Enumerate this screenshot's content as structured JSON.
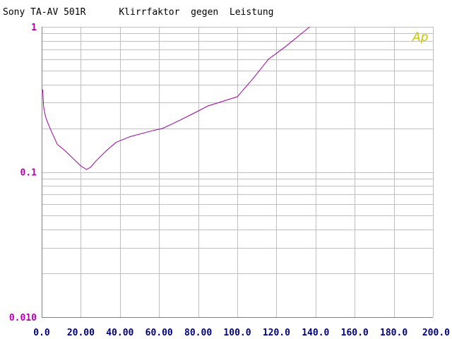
{
  "chart_data": {
    "type": "line",
    "title": "Sony TA-AV 501R      Klirrfaktor  gegen  Leistung",
    "xlabel": "",
    "ylabel": "",
    "xlim": [
      0,
      200
    ],
    "ylim": [
      0.01,
      1
    ],
    "y_scale": "log",
    "grid": true,
    "x_ticks": [
      "0.0",
      "20.00",
      "40.00",
      "60.00",
      "80.00",
      "100.0",
      "120.0",
      "140.0",
      "160.0",
      "180.0",
      "200.0"
    ],
    "y_ticks": [
      {
        "value": 1,
        "label": "1"
      },
      {
        "value": 0.1,
        "label": "0.1"
      },
      {
        "value": 0.01,
        "label": "0.010"
      }
    ],
    "series": [
      {
        "color": "#a000a0",
        "x": [
          0.5,
          1,
          2,
          3,
          5,
          8,
          12,
          15,
          20,
          23,
          25,
          28,
          33,
          38,
          45,
          55,
          62,
          70,
          78,
          85,
          92,
          100,
          108,
          116,
          124,
          132,
          137
        ],
        "y": [
          0.37,
          0.28,
          0.24,
          0.22,
          0.19,
          0.155,
          0.14,
          0.128,
          0.11,
          0.104,
          0.108,
          0.12,
          0.14,
          0.16,
          0.175,
          0.19,
          0.2,
          0.225,
          0.255,
          0.285,
          0.305,
          0.33,
          0.44,
          0.6,
          0.72,
          0.88,
          1.0
        ]
      }
    ]
  },
  "logo": {
    "text": "Ap"
  },
  "colors": {
    "grid": "#c0c0c0",
    "axis": "#808080",
    "line": "#a000a0",
    "ytick": "#b000b0",
    "xtick": "#00007f"
  }
}
